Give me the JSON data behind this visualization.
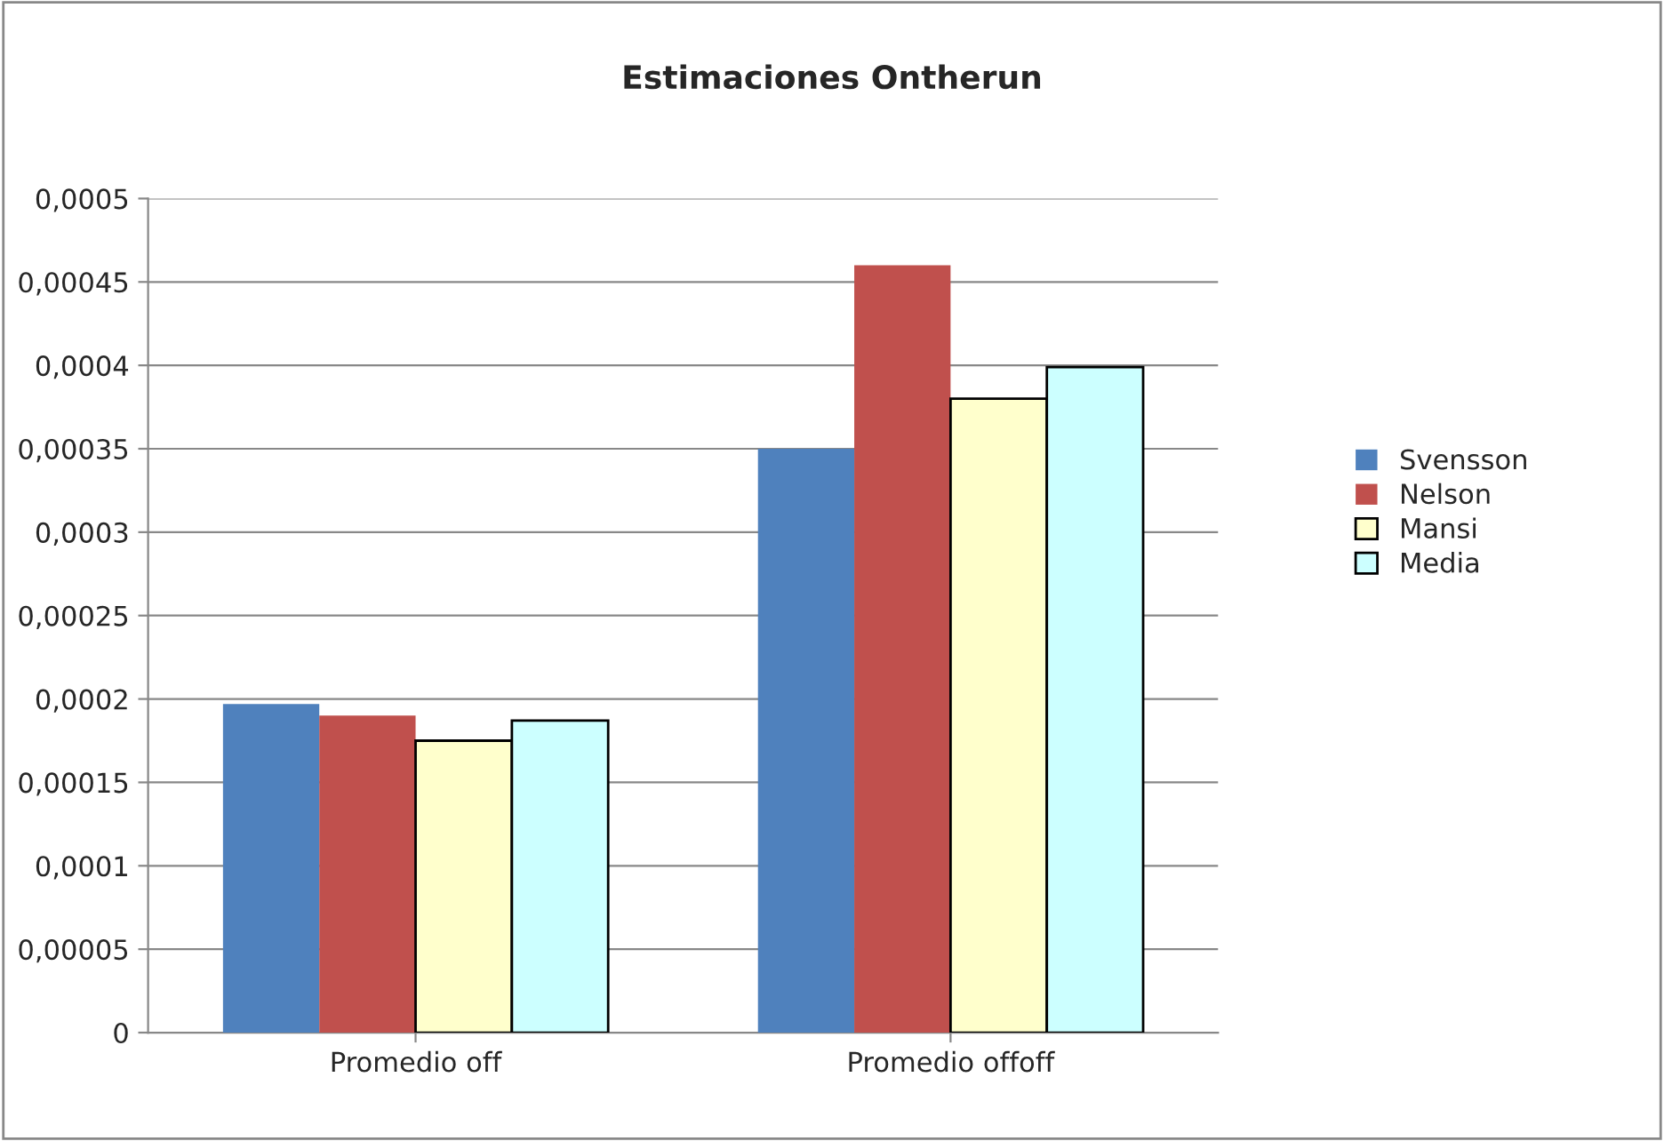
{
  "chart_data": {
    "type": "bar",
    "title": "Estimaciones Ontherun",
    "categories": [
      "Promedio off",
      "Promedio offoff"
    ],
    "series": [
      {
        "name": "Svensson",
        "color": "#4f81bd",
        "values": [
          0.000197,
          0.00035
        ]
      },
      {
        "name": "Nelson",
        "color": "#c0504d",
        "values": [
          0.00019,
          0.00046
        ]
      },
      {
        "name": "Mansi",
        "color": "#ffffcc",
        "values": [
          0.000175,
          0.00038
        ]
      },
      {
        "name": "Media",
        "color": "#ccffff",
        "values": [
          0.000187,
          0.000399
        ]
      }
    ],
    "ylim": [
      0,
      0.0005
    ],
    "yticks": [
      0,
      {
        "value": 5e-05,
        "label": "0,00005"
      },
      {
        "value": 0.0001,
        "label": "0,0001"
      },
      {
        "value": 0.00015,
        "label": "0,00015"
      },
      {
        "value": 0.0002,
        "label": "0,0002"
      },
      {
        "value": 0.00025,
        "label": "0,00025"
      },
      {
        "value": 0.0003,
        "label": "0,0003"
      },
      {
        "value": 0.00035,
        "label": "0,00035"
      },
      {
        "value": 0.0004,
        "label": "0,0004"
      },
      {
        "value": 0.00045,
        "label": "0,00045"
      },
      {
        "value": 0.0005,
        "label": "0,0005"
      }
    ],
    "grid": "y",
    "legend": "right"
  }
}
